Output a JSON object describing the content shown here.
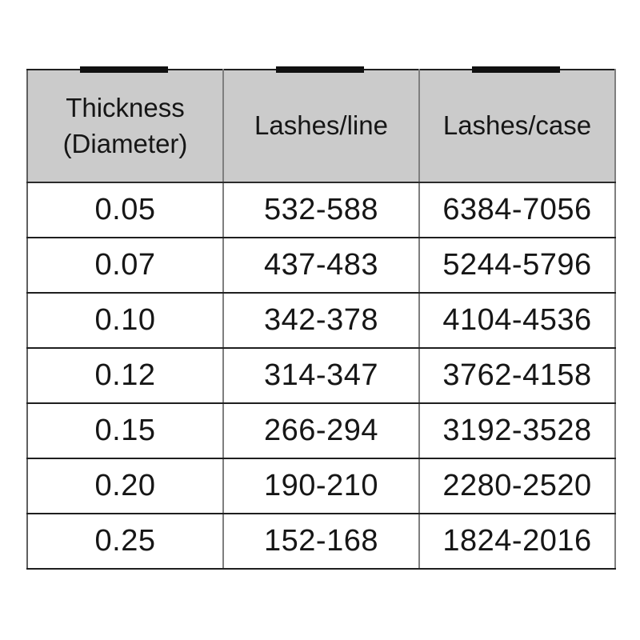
{
  "colors": {
    "header_bg": "#cbcbcb",
    "bar_color": "#101010",
    "border_dark": "#1f1f1f",
    "border_gray": "#7f7f7f",
    "text_color": "#161616",
    "page_bg": "#ffffff"
  },
  "chart_data": {
    "type": "table",
    "title": "",
    "columns": [
      "Thickness (Diameter)",
      "Lashes/line",
      "Lashes/case"
    ],
    "rows": [
      [
        "0.05",
        "532-588",
        "6384-7056"
      ],
      [
        "0.07",
        "437-483",
        "5244-5796"
      ],
      [
        "0.10",
        "342-378",
        "4104-4536"
      ],
      [
        "0.12",
        "314-347",
        "3762-4158"
      ],
      [
        "0.15",
        "266-294",
        "3192-3528"
      ],
      [
        "0.20",
        "190-210",
        "2280-2520"
      ],
      [
        "0.25",
        "152-168",
        "1824-2016"
      ]
    ],
    "layout_hints": {
      "header_background": "#cbcbcb",
      "column_top_markers": true,
      "grid": true
    }
  }
}
